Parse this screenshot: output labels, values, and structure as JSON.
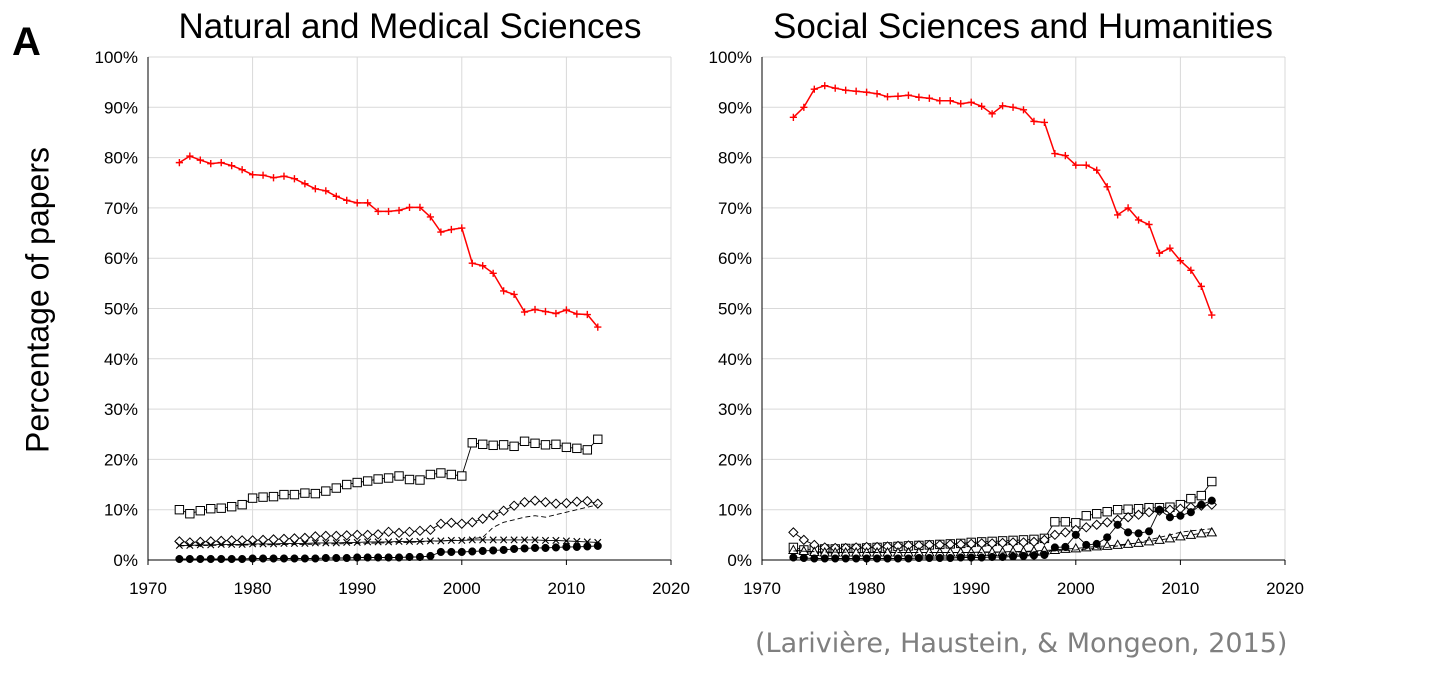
{
  "panel_label": "A",
  "shared_ylabel": "Percentage of papers",
  "source_note": "(Larivière, Haustein, & Mongeon, 2015)",
  "colors": {
    "highlight": "#ff0000",
    "other": "#000000",
    "grid": "#d9d9d9"
  },
  "chart_data": [
    {
      "type": "line",
      "title": "Natural and Medical Sciences",
      "xlabel": "",
      "ylabel": "Percentage of papers",
      "xlim": [
        1970,
        2020
      ],
      "ylim": [
        0,
        100
      ],
      "x_ticks": [
        1970,
        1980,
        1990,
        2000,
        2010,
        2020
      ],
      "y_ticks": [
        0,
        10,
        20,
        30,
        40,
        50,
        60,
        70,
        80,
        90,
        100
      ],
      "y_tick_labels": [
        "0%",
        "10%",
        "20%",
        "30%",
        "40%",
        "50%",
        "60%",
        "70%",
        "80%",
        "90%",
        "100%"
      ],
      "grid": true,
      "series": [
        {
          "marker": "plus",
          "color": "#ff0000",
          "line": "solid",
          "x": [
            1973,
            1974,
            1975,
            1976,
            1977,
            1978,
            1979,
            1980,
            1981,
            1982,
            1983,
            1984,
            1985,
            1986,
            1987,
            1988,
            1989,
            1990,
            1991,
            1992,
            1993,
            1994,
            1995,
            1996,
            1997,
            1998,
            1999,
            2000,
            2001,
            2002,
            2003,
            2004,
            2005,
            2006,
            2007,
            2008,
            2009,
            2010,
            2011,
            2012,
            2013
          ],
          "values": [
            79,
            80.3,
            79.5,
            78.8,
            79,
            78.4,
            77.6,
            76.6,
            76.5,
            76,
            76.3,
            75.8,
            74.8,
            73.8,
            73.4,
            72.3,
            71.5,
            71,
            71,
            69.3,
            69.3,
            69.5,
            70.1,
            70.1,
            68.2,
            65.2,
            65.7,
            66,
            59,
            58.5,
            57,
            53.5,
            52.8,
            49.3,
            49.8,
            49.4,
            49,
            49.7,
            48.9,
            48.8,
            46.3
          ]
        },
        {
          "marker": "square",
          "color": "#000000",
          "line": "solid",
          "x": [
            1973,
            1974,
            1975,
            1976,
            1977,
            1978,
            1979,
            1980,
            1981,
            1982,
            1983,
            1984,
            1985,
            1986,
            1987,
            1988,
            1989,
            1990,
            1991,
            1992,
            1993,
            1994,
            1995,
            1996,
            1997,
            1998,
            1999,
            2000,
            2001,
            2002,
            2003,
            2004,
            2005,
            2006,
            2007,
            2008,
            2009,
            2010,
            2011,
            2012,
            2013
          ],
          "values": [
            10,
            9.2,
            9.8,
            10.2,
            10.3,
            10.6,
            11,
            12.3,
            12.5,
            12.6,
            13,
            13,
            13.3,
            13.2,
            13.7,
            14.3,
            15,
            15.4,
            15.7,
            16.1,
            16.3,
            16.7,
            16,
            15.9,
            17,
            17.3,
            17,
            16.7,
            23.3,
            23,
            22.8,
            22.9,
            22.6,
            23.6,
            23.2,
            22.9,
            23,
            22.4,
            22.2,
            21.9,
            24
          ]
        },
        {
          "marker": "diamond",
          "color": "#000000",
          "line": "solid",
          "x": [
            1973,
            1974,
            1975,
            1976,
            1977,
            1978,
            1979,
            1980,
            1981,
            1982,
            1983,
            1984,
            1985,
            1986,
            1987,
            1988,
            1989,
            1990,
            1991,
            1992,
            1993,
            1994,
            1995,
            1996,
            1997,
            1998,
            1999,
            2000,
            2001,
            2002,
            2003,
            2004,
            2005,
            2006,
            2007,
            2008,
            2009,
            2010,
            2011,
            2012,
            2013
          ],
          "values": [
            3.7,
            3.5,
            3.6,
            3.7,
            3.8,
            3.9,
            3.9,
            3.9,
            4,
            4.1,
            4.2,
            4.3,
            4.4,
            4.7,
            4.8,
            4.8,
            4.9,
            5,
            5,
            5.1,
            5.6,
            5.4,
            5.6,
            5.8,
            6,
            7.2,
            7.4,
            7.2,
            7.5,
            8.2,
            8.9,
            9.8,
            10.8,
            11.5,
            11.8,
            11.5,
            11.2,
            11.3,
            11.6,
            11.7,
            11.2
          ]
        },
        {
          "marker": "x",
          "color": "#000000",
          "line": "solid",
          "x": [
            1973,
            1974,
            1975,
            1976,
            1977,
            1978,
            1979,
            1980,
            1981,
            1982,
            1983,
            1984,
            1985,
            1986,
            1987,
            1988,
            1989,
            1990,
            1991,
            1992,
            1993,
            1994,
            1995,
            1996,
            1997,
            1998,
            1999,
            2000,
            2001,
            2002,
            2003,
            2004,
            2005,
            2006,
            2007,
            2008,
            2009,
            2010,
            2011,
            2012,
            2013
          ],
          "values": [
            2.9,
            2.9,
            3,
            3,
            3.1,
            3.1,
            3.1,
            3.2,
            3.2,
            3.2,
            3.3,
            3.3,
            3.3,
            3.4,
            3.4,
            3.4,
            3.5,
            3.5,
            3.6,
            3.6,
            3.6,
            3.7,
            3.7,
            3.7,
            3.8,
            3.8,
            3.9,
            3.9,
            4,
            4,
            4,
            4,
            4,
            4,
            4,
            3.9,
            3.9,
            3.8,
            3.7,
            3.6,
            3.5
          ]
        },
        {
          "marker": "none",
          "color": "#000000",
          "line": "dashed",
          "x": [
            1973,
            1976,
            1980,
            1985,
            1990,
            1995,
            1998,
            2000,
            2002,
            2003,
            2004,
            2005,
            2006,
            2007,
            2008,
            2009,
            2010,
            2011,
            2012,
            2013
          ],
          "values": [
            2.8,
            2.9,
            3,
            3.1,
            3.3,
            3.5,
            3.8,
            4,
            4.5,
            6.5,
            7.5,
            8,
            8.5,
            8.8,
            8.5,
            9,
            9.5,
            10,
            10.5,
            11
          ]
        },
        {
          "marker": "circle",
          "color": "#000000",
          "line": "solid",
          "x": [
            1973,
            1974,
            1975,
            1976,
            1977,
            1978,
            1979,
            1980,
            1981,
            1982,
            1983,
            1984,
            1985,
            1986,
            1987,
            1988,
            1989,
            1990,
            1991,
            1992,
            1993,
            1994,
            1995,
            1996,
            1997,
            1998,
            1999,
            2000,
            2001,
            2002,
            2003,
            2004,
            2005,
            2006,
            2007,
            2008,
            2009,
            2010,
            2011,
            2012,
            2013
          ],
          "values": [
            0.2,
            0.2,
            0.2,
            0.2,
            0.2,
            0.2,
            0.2,
            0.3,
            0.3,
            0.3,
            0.3,
            0.3,
            0.3,
            0.3,
            0.4,
            0.4,
            0.4,
            0.5,
            0.5,
            0.5,
            0.5,
            0.5,
            0.6,
            0.6,
            0.8,
            1.6,
            1.6,
            1.6,
            1.7,
            1.8,
            1.9,
            2,
            2.2,
            2.3,
            2.4,
            2.4,
            2.5,
            2.6,
            2.6,
            2.7,
            2.8
          ]
        }
      ]
    },
    {
      "type": "line",
      "title": "Social Sciences and Humanities",
      "xlabel": "",
      "ylabel": "",
      "xlim": [
        1970,
        2020
      ],
      "ylim": [
        0,
        100
      ],
      "x_ticks": [
        1970,
        1980,
        1990,
        2000,
        2010,
        2020
      ],
      "y_ticks": [
        0,
        10,
        20,
        30,
        40,
        50,
        60,
        70,
        80,
        90,
        100
      ],
      "y_tick_labels": [
        "0%",
        "10%",
        "20%",
        "30%",
        "40%",
        "50%",
        "60%",
        "70%",
        "80%",
        "90%",
        "100%"
      ],
      "grid": true,
      "series": [
        {
          "marker": "plus",
          "color": "#ff0000",
          "line": "solid",
          "x": [
            1973,
            1974,
            1975,
            1976,
            1977,
            1978,
            1979,
            1980,
            1981,
            1982,
            1983,
            1984,
            1985,
            1986,
            1987,
            1988,
            1989,
            1990,
            1991,
            1992,
            1993,
            1994,
            1995,
            1996,
            1997,
            1998,
            1999,
            2000,
            2001,
            2002,
            2003,
            2004,
            2005,
            2006,
            2007,
            2008,
            2009,
            2010,
            2011,
            2012,
            2013
          ],
          "values": [
            88,
            90,
            93.6,
            94.3,
            93.8,
            93.4,
            93.2,
            93,
            92.7,
            92.1,
            92.2,
            92.4,
            92,
            91.8,
            91.3,
            91.3,
            90.7,
            91,
            90.2,
            88.7,
            90.3,
            90,
            89.5,
            87.2,
            87,
            80.8,
            80.4,
            78.5,
            78.5,
            77.5,
            74.2,
            68.6,
            70,
            67.6,
            66.7,
            61,
            62,
            59.5,
            57.6,
            54.4,
            48.7
          ]
        },
        {
          "marker": "square",
          "color": "#000000",
          "line": "solid",
          "x": [
            1973,
            1974,
            1975,
            1976,
            1977,
            1978,
            1979,
            1980,
            1981,
            1982,
            1983,
            1984,
            1985,
            1986,
            1987,
            1988,
            1989,
            1990,
            1991,
            1992,
            1993,
            1994,
            1995,
            1996,
            1997,
            1998,
            1999,
            2000,
            2001,
            2002,
            2003,
            2004,
            2005,
            2006,
            2007,
            2008,
            2009,
            2010,
            2011,
            2012,
            2013
          ],
          "values": [
            2.5,
            2,
            2.1,
            2.2,
            2.2,
            2.3,
            2.3,
            2.4,
            2.5,
            2.6,
            2.7,
            2.8,
            2.9,
            3,
            3.1,
            3.2,
            3.3,
            3.5,
            3.6,
            3.7,
            3.8,
            3.9,
            4,
            4.1,
            4.3,
            7.6,
            7.6,
            7.4,
            8.8,
            9.2,
            9.6,
            10,
            10.1,
            10.2,
            10.4,
            10.4,
            10.5,
            11,
            12.2,
            12.8,
            15.6
          ]
        },
        {
          "marker": "diamond",
          "color": "#000000",
          "line": "solid",
          "x": [
            1973,
            1974,
            1975,
            1976,
            1977,
            1978,
            1979,
            1980,
            1981,
            1982,
            1983,
            1984,
            1985,
            1986,
            1987,
            1988,
            1989,
            1990,
            1991,
            1992,
            1993,
            1994,
            1995,
            1996,
            1997,
            1998,
            1999,
            2000,
            2001,
            2002,
            2003,
            2004,
            2005,
            2006,
            2007,
            2008,
            2009,
            2010,
            2011,
            2012,
            2013
          ],
          "values": [
            5.5,
            4,
            3,
            2.5,
            2.4,
            2.4,
            2.5,
            2.6,
            2.6,
            2.7,
            2.8,
            2.9,
            2.9,
            3,
            3,
            3.1,
            3.1,
            3.2,
            3.3,
            3.3,
            3.4,
            3.5,
            3.5,
            3.6,
            4,
            5,
            5.5,
            6,
            6.5,
            7,
            7.5,
            8,
            8.5,
            9,
            9.5,
            9.8,
            10,
            10.2,
            10.5,
            10.8,
            11
          ]
        },
        {
          "marker": "triangle",
          "color": "#000000",
          "line": "solid",
          "x": [
            1973,
            1974,
            1975,
            1976,
            1977,
            1978,
            1979,
            1980,
            1981,
            1982,
            1983,
            1984,
            1985,
            1986,
            1987,
            1988,
            1989,
            1990,
            1991,
            1992,
            1993,
            1994,
            1995,
            1996,
            1997,
            1998,
            1999,
            2000,
            2001,
            2002,
            2003,
            2004,
            2005,
            2006,
            2007,
            2008,
            2009,
            2010,
            2011,
            2012,
            2013
          ],
          "values": [
            2,
            1.8,
            1.6,
            1.5,
            1.5,
            1.5,
            1.5,
            1.5,
            1.5,
            1.5,
            1.5,
            1.5,
            1.5,
            1.5,
            1.5,
            1.5,
            1.5,
            1.5,
            1.6,
            1.6,
            1.6,
            1.7,
            1.7,
            1.8,
            1.9,
            2,
            2.2,
            2.3,
            2.5,
            2.7,
            2.8,
            3,
            3.2,
            3.4,
            3.7,
            4,
            4.3,
            4.7,
            5,
            5.3,
            5.5
          ]
        },
        {
          "marker": "none",
          "color": "#000000",
          "line": "dashed",
          "x": [
            1973,
            1976,
            1980,
            1985,
            1990,
            1995,
            1998,
            2000,
            2002,
            2003,
            2004,
            2005,
            2006,
            2007,
            2008,
            2009,
            2010,
            2011,
            2012,
            2013
          ],
          "values": [
            1.8,
            1.6,
            1.5,
            1.5,
            1.5,
            1.6,
            1.8,
            2,
            2.3,
            2.5,
            2.8,
            3.1,
            3.5,
            4,
            4.5,
            5,
            5.5,
            5.8,
            6,
            6.2
          ]
        },
        {
          "marker": "circle",
          "color": "#000000",
          "line": "solid",
          "x": [
            1973,
            1974,
            1975,
            1976,
            1977,
            1978,
            1979,
            1980,
            1981,
            1982,
            1983,
            1984,
            1985,
            1986,
            1987,
            1988,
            1989,
            1990,
            1991,
            1992,
            1993,
            1994,
            1995,
            1996,
            1997,
            1998,
            1999,
            2000,
            2001,
            2002,
            2003,
            2004,
            2005,
            2006,
            2007,
            2008,
            2009,
            2010,
            2011,
            2012,
            2013
          ],
          "values": [
            0.5,
            0.4,
            0.3,
            0.3,
            0.3,
            0.3,
            0.3,
            0.3,
            0.3,
            0.3,
            0.3,
            0.3,
            0.4,
            0.4,
            0.4,
            0.4,
            0.5,
            0.5,
            0.5,
            0.6,
            0.6,
            0.7,
            0.8,
            0.9,
            1,
            2.5,
            2.6,
            5,
            3,
            3.2,
            4.5,
            7,
            5.5,
            5.3,
            5.7,
            10,
            8.5,
            8.8,
            9.5,
            11,
            11.8
          ]
        }
      ]
    }
  ]
}
